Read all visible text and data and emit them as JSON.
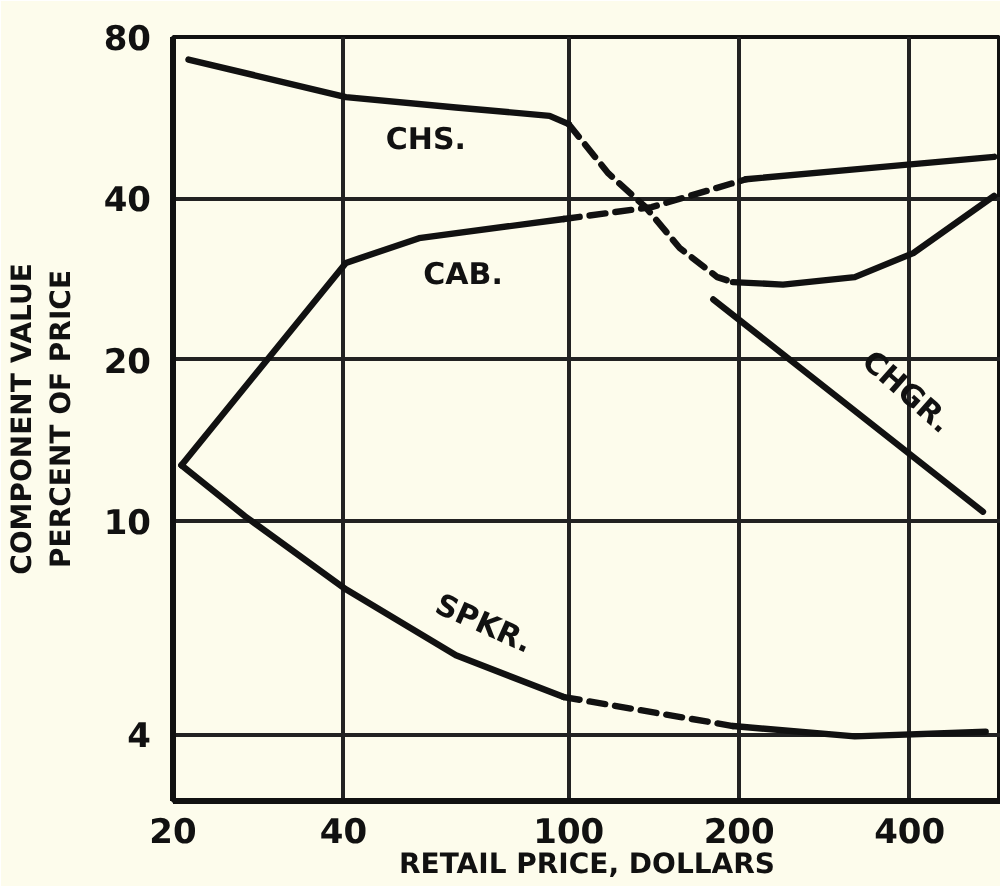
{
  "chart_data": {
    "type": "line",
    "xlabel": "RETAIL PRICE, DOLLARS",
    "ylabel": "COMPONENT VALUE\nPERCENT OF PRICE",
    "log": "xy",
    "grid": true,
    "legend": false,
    "marker": "none",
    "xlim": [
      20,
      580
    ],
    "ylim": [
      3,
      80
    ],
    "xticks": [
      20,
      40,
      100,
      200,
      400
    ],
    "yticks": [
      4,
      10,
      20,
      40,
      80
    ],
    "series": [
      {
        "name": "CHS.",
        "color": "#111111",
        "line_style": "solid",
        "x": [
          21.3,
          40.4,
          63.2,
          92.5,
          100
        ],
        "values": [
          72.6,
          61.8,
          59.1,
          57,
          55
        ]
      },
      {
        "color": "#111111",
        "line_style": "dashed",
        "x": [
          100,
          117.5,
          136.7,
          157,
          183,
          195
        ],
        "values": [
          55,
          44.5,
          38.5,
          32.3,
          28.5,
          27.9
        ]
      },
      {
        "color": "#111111",
        "line_style": "solid",
        "x": [
          195,
          239,
          320,
          406,
          564
        ],
        "values": [
          27.9,
          27.6,
          28.5,
          31.6,
          40.4
        ]
      },
      {
        "name": "CAB.",
        "color": "#111111",
        "line_style": "solid",
        "x": [
          20.7,
          40.4,
          54.4,
          98
        ],
        "values": [
          12.7,
          30.3,
          33.7,
          36.6
        ]
      },
      {
        "color": "#111111",
        "line_style": "dashed",
        "x": [
          98,
          140,
          205.6
        ],
        "values": [
          36.6,
          38.5,
          43.4
        ]
      },
      {
        "color": "#111111",
        "line_style": "solid",
        "x": [
          205.6,
          320,
          564
        ],
        "values": [
          43.4,
          45.3,
          47.8
        ]
      },
      {
        "name": "CHGR.",
        "color": "#111111",
        "line_style": "solid",
        "x": [
          180,
          539
        ],
        "values": [
          25.9,
          10.4
        ]
      },
      {
        "name": "SPKR.",
        "color": "#111111",
        "line_style": "solid",
        "x": [
          20.7,
          26.8,
          40.4,
          63.2,
          98
        ],
        "values": [
          12.7,
          10.2,
          7.45,
          5.61,
          4.69
        ]
      },
      {
        "color": "#111111",
        "line_style": "dashed",
        "x": [
          98,
          195
        ],
        "values": [
          4.69,
          4.14
        ]
      },
      {
        "color": "#111111",
        "line_style": "solid",
        "x": [
          195,
          320,
          545
        ],
        "values": [
          4.14,
          3.96,
          4.04
        ]
      }
    ]
  }
}
